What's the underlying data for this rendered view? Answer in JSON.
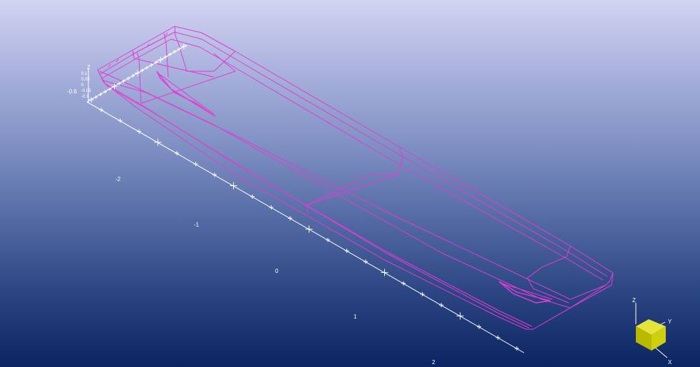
{
  "viewport": {
    "background_top": "#d2d3f2",
    "background_bottom": "#0b2563",
    "model_color": "#e33bd3",
    "axis_color": "#ffffff",
    "nav_cube_color": "#c8c800"
  },
  "x_axis": {
    "tick_labels": [
      "-2",
      "-1",
      "0",
      "1",
      "2"
    ]
  },
  "y_axis": {
    "end_label": "-0.6"
  },
  "z_axis": {
    "label": "Z",
    "tick_labels": [
      "0.1",
      "0.05",
      "0",
      "-0.05",
      "-0.1"
    ]
  },
  "nav_cube": {
    "axis_z": "Z",
    "axis_y": "Y",
    "axis_x": "X"
  }
}
